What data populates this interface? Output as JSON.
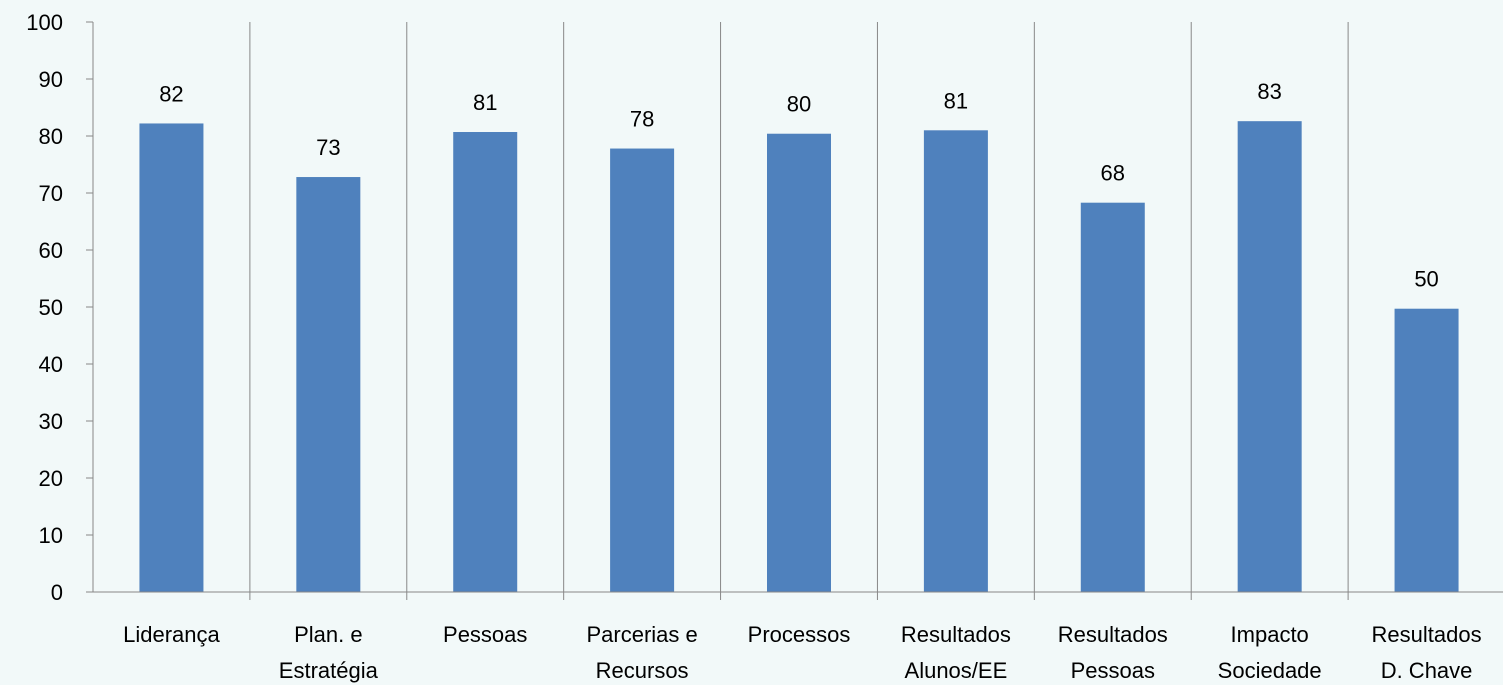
{
  "chart_data": {
    "type": "bar",
    "title": "",
    "xlabel": "",
    "ylabel": "",
    "ylim": [
      0,
      100
    ],
    "yticks": [
      0,
      10,
      20,
      30,
      40,
      50,
      60,
      70,
      80,
      90,
      100
    ],
    "grid": "vertical category separators",
    "legend": "none",
    "categories": [
      [
        "Liderança"
      ],
      [
        "Plan. e",
        "Estratégia"
      ],
      [
        "Pessoas"
      ],
      [
        "Parcerias e",
        "Recursos"
      ],
      [
        "Processos"
      ],
      [
        "Resultados",
        "Alunos/EE"
      ],
      [
        "Resultados",
        "Pessoas"
      ],
      [
        "Impacto",
        "Sociedade"
      ],
      [
        "Resultados",
        "D. Chave"
      ]
    ],
    "values": [
      82.2,
      72.8,
      80.7,
      77.8,
      80.4,
      81.0,
      68.3,
      82.6,
      49.7
    ],
    "data_labels": [
      "82",
      "73",
      "81",
      "78",
      "80",
      "81",
      "68",
      "83",
      "50"
    ],
    "colors": {
      "bar": "#4f81bd",
      "axis": "#888888",
      "background": "#f2f9f9"
    }
  }
}
